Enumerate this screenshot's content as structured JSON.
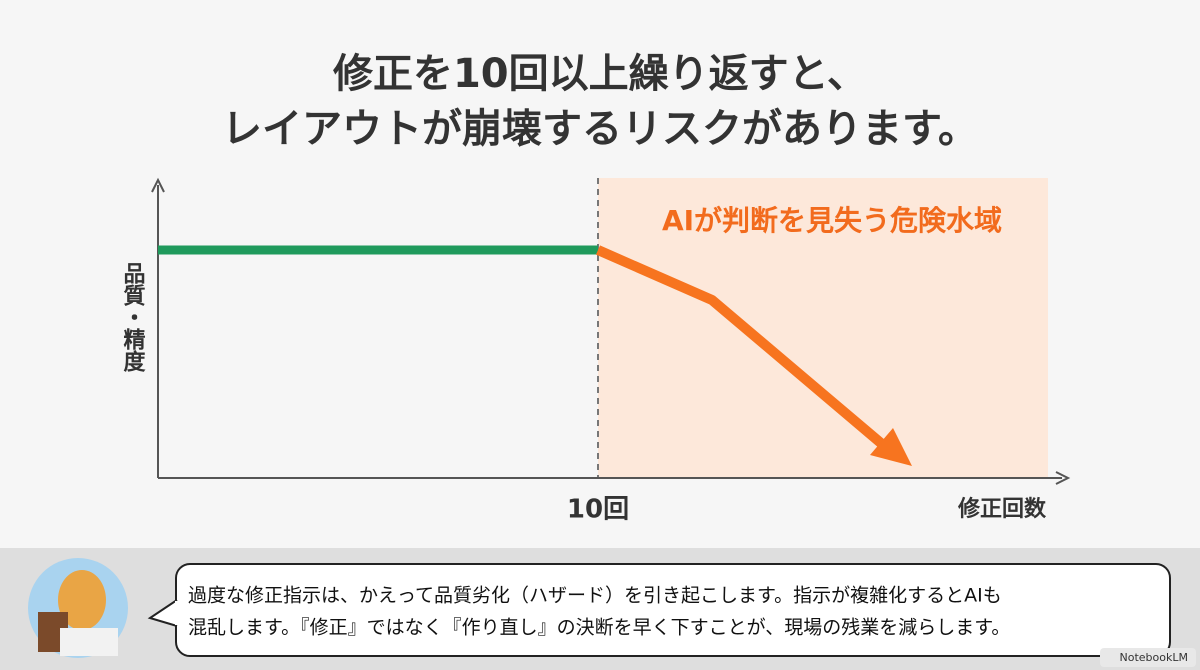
{
  "header": {
    "title_lines": [
      "修正を10回以上繰り返すと、",
      "レイアウトが崩壊するリスクがあります。"
    ]
  },
  "diagram": {
    "y_axis_label": "品質・精度",
    "x_axis_label": "修正回数",
    "marker_label": "10回",
    "zone_label": "AIが判断を見失う危険水域"
  },
  "caption": {
    "lines": [
      "過度な修正指示は、かえって品質劣化（ハザード）を引き起こします。指示が複雑化するとAIも",
      "混乱します。『修正』ではなく『作り直し』の決断を早く下すことが、現場の残業を減らします。"
    ]
  },
  "badge": {
    "text": "NotebookLM"
  }
}
